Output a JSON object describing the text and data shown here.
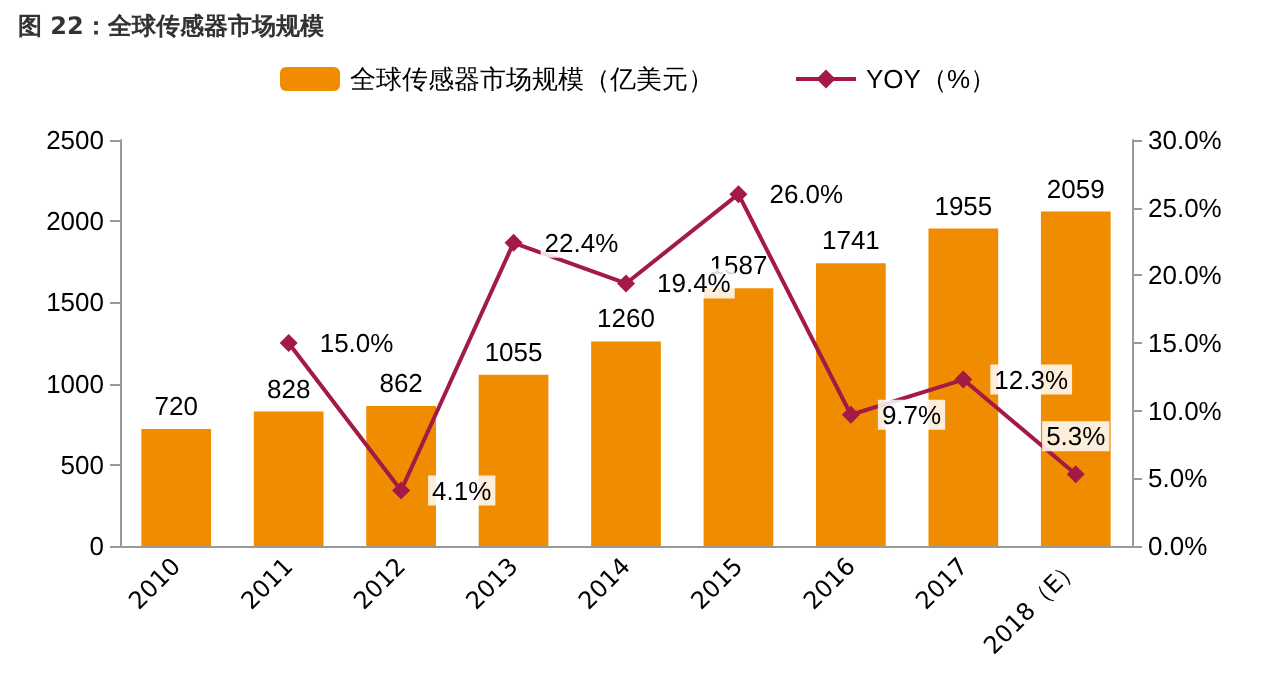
{
  "chart_data": {
    "type": "bar",
    "title": "图 22：全球传感器市场规模",
    "categories": [
      "2010",
      "2011",
      "2012",
      "2013",
      "2014",
      "2015",
      "2016",
      "2017",
      "2018（E）"
    ],
    "series": [
      {
        "name": "全球传感器市场规模（亿美元）",
        "color": "#f08c00",
        "values": [
          720,
          828,
          862,
          1055,
          1260,
          1587,
          1741,
          1955,
          2059
        ]
      },
      {
        "name": "YOY（%）",
        "type": "line",
        "axis": "y2",
        "color": "#a31a45",
        "marker": "diamond",
        "values": [
          null,
          15.0,
          4.1,
          22.4,
          19.4,
          26.0,
          9.7,
          12.3,
          5.3
        ],
        "value_labels": [
          null,
          "15.0%",
          "4.1%",
          "22.4%",
          "19.4%",
          "26.0%",
          "9.7%",
          "12.3%",
          "5.3%"
        ]
      }
    ],
    "data_labels": true,
    "ylim": [
      0,
      2500
    ],
    "yticks": [
      0,
      500,
      1000,
      1500,
      2000,
      2500
    ],
    "y2lim": [
      0,
      30
    ],
    "y2ticks": [
      {
        "value": 0,
        "label": "0.0%"
      },
      {
        "value": 5,
        "label": "5.0%"
      },
      {
        "value": 10,
        "label": "10.0%"
      },
      {
        "value": 15,
        "label": "15.0%"
      },
      {
        "value": 20,
        "label": "20.0%"
      },
      {
        "value": 25,
        "label": "25.0%"
      },
      {
        "value": 30,
        "label": "30.0%"
      }
    ],
    "legend": "top",
    "grid": false
  }
}
